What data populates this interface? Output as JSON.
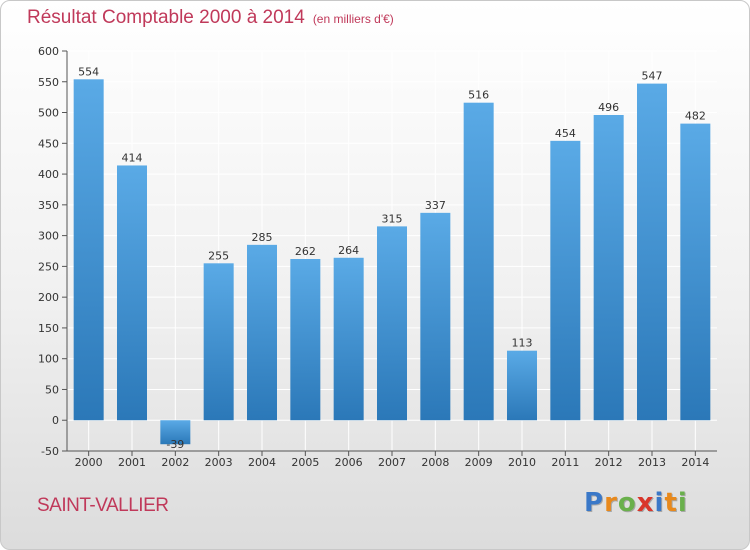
{
  "title": "Résultat Comptable 2000 à 2014",
  "subtitle": "(en milliers d'€)",
  "place": "SAINT-VALLIER",
  "logo": {
    "letters": [
      "P",
      "r",
      "o",
      "x",
      "i",
      "t",
      "i"
    ],
    "colors": [
      "#3a78c8",
      "#e8891c",
      "#6ab04c",
      "#d9362b",
      "#3a78c8",
      "#e8891c",
      "#6ab04c"
    ]
  },
  "colors": {
    "bar_top": "#5aaae6",
    "bar_bottom": "#2b78b8",
    "accent": "#c0395a",
    "grid": "#ffffff"
  },
  "chart_data": {
    "type": "bar",
    "categories": [
      "2000",
      "2001",
      "2002",
      "2003",
      "2004",
      "2005",
      "2006",
      "2007",
      "2008",
      "2009",
      "2010",
      "2011",
      "2012",
      "2013",
      "2014"
    ],
    "values": [
      554,
      414,
      -39,
      255,
      285,
      262,
      264,
      315,
      337,
      516,
      113,
      454,
      496,
      547,
      482
    ],
    "labels": [
      "554",
      "414",
      "-39",
      "255",
      "285",
      "262",
      "264",
      "315",
      "337",
      "516",
      "113",
      "454",
      "496",
      "547",
      "482"
    ],
    "ylim": [
      -50,
      600
    ],
    "yticks": [
      -50,
      0,
      50,
      100,
      150,
      200,
      250,
      300,
      350,
      400,
      450,
      500,
      550,
      600
    ],
    "ytick_labels": [
      "-50",
      "0",
      "50",
      "100",
      "150",
      "200",
      "250",
      "300",
      "350",
      "400",
      "450",
      "500",
      "550",
      "600"
    ],
    "grid": true,
    "xlabel": "",
    "ylabel": ""
  }
}
